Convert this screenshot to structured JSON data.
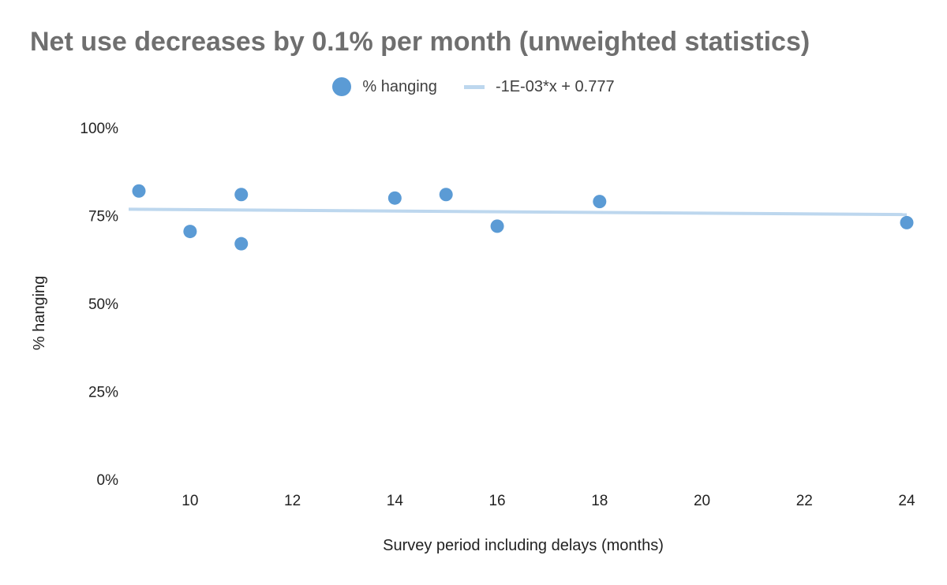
{
  "chart_data": {
    "type": "scatter",
    "title": "Net use decreases by 0.1% per month (unweighted statistics)",
    "xlabel": "Survey period including delays (months)",
    "ylabel": "% hanging",
    "xlim": [
      9,
      24
    ],
    "ylim": [
      0,
      1
    ],
    "x_ticks": [
      10,
      12,
      14,
      16,
      18,
      20,
      22,
      24
    ],
    "y_ticks": [
      0,
      0.25,
      0.5,
      0.75,
      1
    ],
    "y_tick_labels": [
      "0%",
      "25%",
      "50%",
      "75%",
      "100%"
    ],
    "grid": false,
    "legend_position": "top",
    "series": [
      {
        "name": "% hanging",
        "kind": "scatter",
        "color": "#5b9bd5",
        "x": [
          9,
          10,
          11,
          11,
          14,
          15,
          16,
          18,
          24
        ],
        "y": [
          0.82,
          0.705,
          0.81,
          0.67,
          0.8,
          0.81,
          0.72,
          0.79,
          0.73
        ]
      },
      {
        "name": "-1E-03*x + 0.777",
        "kind": "trendline",
        "color": "#bdd7ee",
        "slope": -0.001,
        "intercept": 0.777
      }
    ]
  }
}
